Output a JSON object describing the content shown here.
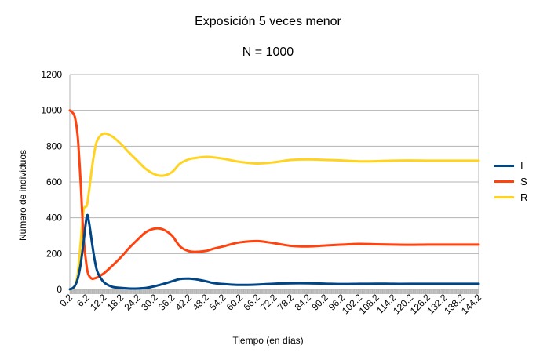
{
  "chart_data": {
    "type": "line",
    "title": "Exposición 5 veces menor",
    "subtitle": "N = 1000",
    "xlabel": "Tiempo (en días)",
    "ylabel": "Número de individuos",
    "ylim": [
      0,
      1200
    ],
    "yticks": [
      0,
      200,
      400,
      600,
      800,
      1000,
      1200
    ],
    "xlim": [
      0.2,
      144.2
    ],
    "xticks": [
      "0.2",
      "6.2",
      "12.2",
      "18.2",
      "24.2",
      "30.2",
      "36.2",
      "42.2",
      "48.2",
      "54.2",
      "60.2",
      "66.2",
      "72.2",
      "78.2",
      "84.2",
      "90.2",
      "96.2",
      "102.2",
      "108.2",
      "114.2",
      "120.2",
      "126.2",
      "132.2",
      "138.2",
      "144.2"
    ],
    "grid": true,
    "legend_position": "right",
    "series": [
      {
        "name": "I",
        "color": "#004586",
        "x": [
          0.2,
          1,
          2,
          3,
          4,
          5,
          6.2,
          7,
          8,
          9,
          10,
          12.2,
          15,
          18.2,
          21,
          24.2,
          27,
          30.2,
          33,
          36.2,
          39,
          42.2,
          45,
          48.2,
          51,
          54.2,
          57,
          60.2,
          66.2,
          72.2,
          78.2,
          84.2,
          90.2,
          96.2,
          102.2,
          108.2,
          114.2,
          120.2,
          126.2,
          132.2,
          138.2,
          144.2
        ],
        "y": [
          1,
          5,
          20,
          60,
          140,
          260,
          410,
          370,
          260,
          160,
          95,
          40,
          15,
          8,
          5,
          5,
          8,
          18,
          30,
          45,
          58,
          60,
          55,
          45,
          35,
          30,
          27,
          25,
          27,
          32,
          34,
          34,
          32,
          30,
          31,
          32,
          31,
          31,
          31,
          31,
          31,
          31
        ]
      },
      {
        "name": "S",
        "color": "#ff420e",
        "x": [
          0.2,
          1,
          2,
          3,
          4,
          5,
          6.2,
          7,
          8,
          9,
          10,
          12.2,
          15,
          18.2,
          21,
          24.2,
          27,
          30.2,
          33,
          36.2,
          39,
          42.2,
          45,
          48.2,
          51,
          54.2,
          57,
          60.2,
          66.2,
          72.2,
          78.2,
          84.2,
          90.2,
          96.2,
          102.2,
          108.2,
          114.2,
          120.2,
          126.2,
          132.2,
          138.2,
          144.2
        ],
        "y": [
          999,
          990,
          960,
          850,
          600,
          300,
          120,
          75,
          60,
          62,
          68,
          90,
          130,
          180,
          230,
          280,
          320,
          340,
          335,
          300,
          240,
          213,
          210,
          215,
          228,
          240,
          252,
          263,
          270,
          258,
          243,
          240,
          245,
          250,
          254,
          252,
          250,
          249,
          250,
          250,
          250,
          250
        ]
      },
      {
        "name": "R",
        "color": "#ffd320",
        "x": [
          0.2,
          1,
          2,
          3,
          4,
          5,
          6.2,
          7,
          8,
          9,
          10,
          12.2,
          15,
          18.2,
          21,
          24.2,
          27,
          30.2,
          33,
          36.2,
          39,
          42.2,
          45,
          48.2,
          51,
          54.2,
          57,
          60.2,
          66.2,
          72.2,
          78.2,
          84.2,
          90.2,
          96.2,
          102.2,
          108.2,
          114.2,
          120.2,
          126.2,
          132.2,
          138.2,
          144.2
        ],
        "y": [
          0,
          5,
          20,
          90,
          260,
          440,
          470,
          555,
          680,
          780,
          837,
          870,
          855,
          812,
          765,
          715,
          672,
          642,
          635,
          655,
          702,
          727,
          735,
          740,
          737,
          730,
          721,
          712,
          703,
          710,
          723,
          726,
          723,
          720,
          715,
          716,
          719,
          720,
          719,
          719,
          719,
          719
        ]
      }
    ]
  }
}
